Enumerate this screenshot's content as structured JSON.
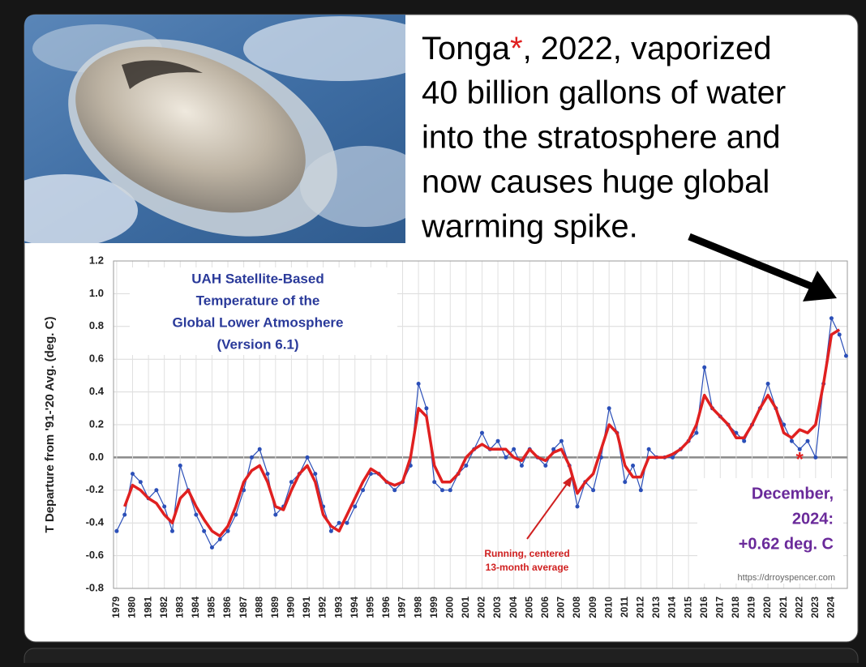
{
  "headline": [
    [
      "Tonga",
      "*",
      ", 2022, vaporized"
    ],
    [
      "40 billion gallons of water"
    ],
    [
      "into the stratosphere and"
    ],
    [
      "now causes huge global"
    ],
    [
      "warming spike."
    ]
  ],
  "chart_data": {
    "type": "line",
    "title": [
      "UAH Satellite-Based",
      "Temperature of the",
      "Global Lower Atmosphere",
      "(Version 6.1)"
    ],
    "ylabel": "T Departure from '91-'20 Avg. (deg. C)",
    "annotation": [
      "December,",
      "2024:",
      "+0.62 deg. C"
    ],
    "running_note": [
      "Running, centered",
      "13-month average"
    ],
    "source": "https://drroyspencer.com",
    "asterisk": "*",
    "grid": true,
    "xlim": [
      1978.8,
      2025
    ],
    "xticks": [
      1979,
      1980,
      1981,
      1982,
      1983,
      1984,
      1985,
      1986,
      1987,
      1988,
      1989,
      1990,
      1991,
      1992,
      1993,
      1994,
      1995,
      1996,
      1997,
      1998,
      1999,
      2000,
      2001,
      2002,
      2003,
      2004,
      2005,
      2006,
      2007,
      2008,
      2009,
      2010,
      2011,
      2012,
      2013,
      2014,
      2015,
      2016,
      2017,
      2018,
      2019,
      2020,
      2021,
      2022,
      2023,
      2024
    ],
    "ylim": [
      -0.8,
      1.2
    ],
    "yticks": [
      -0.8,
      -0.6,
      -0.4,
      -0.2,
      {
        "value": 0,
        "label": "0.0"
      },
      0.2,
      0.4,
      0.6,
      0.8,
      {
        "value": 1,
        "label": "1.0"
      },
      1.2
    ],
    "x": [
      1979,
      1979.5,
      1980,
      1980.5,
      1981,
      1981.5,
      1982,
      1982.5,
      1983,
      1983.5,
      1984,
      1984.5,
      1985,
      1985.5,
      1986,
      1986.5,
      1987,
      1987.5,
      1988,
      1988.5,
      1989,
      1989.5,
      1990,
      1990.5,
      1991,
      1991.5,
      1992,
      1992.5,
      1993,
      1993.5,
      1994,
      1994.5,
      1995,
      1995.5,
      1996,
      1996.5,
      1997,
      1997.5,
      1998,
      1998.5,
      1999,
      1999.5,
      2000,
      2000.5,
      2001,
      2001.5,
      2002,
      2002.5,
      2003,
      2003.5,
      2004,
      2004.5,
      2005,
      2005.5,
      2006,
      2006.5,
      2007,
      2007.5,
      2008,
      2008.5,
      2009,
      2009.5,
      2010,
      2010.5,
      2011,
      2011.5,
      2012,
      2012.5,
      2013,
      2013.5,
      2014,
      2014.5,
      2015,
      2015.5,
      2016,
      2016.5,
      2017,
      2017.5,
      2018,
      2018.5,
      2019,
      2019.5,
      2020,
      2020.5,
      2021,
      2021.5,
      2022,
      2022.5,
      2023,
      2023.5,
      2024,
      2024.5,
      2024.92
    ],
    "series": [
      {
        "color": "#2b4fb8",
        "markers": true,
        "values": [
          -0.45,
          -0.35,
          -0.1,
          -0.15,
          -0.25,
          -0.2,
          -0.3,
          -0.45,
          -0.05,
          -0.2,
          -0.35,
          -0.45,
          -0.55,
          -0.5,
          -0.45,
          -0.35,
          -0.2,
          0,
          0.05,
          -0.1,
          -0.35,
          -0.3,
          -0.15,
          -0.1,
          0,
          -0.1,
          -0.3,
          -0.45,
          -0.4,
          -0.4,
          -0.3,
          -0.2,
          -0.1,
          -0.1,
          -0.15,
          -0.2,
          -0.15,
          -0.05,
          0.45,
          0.3,
          -0.15,
          -0.2,
          -0.2,
          -0.1,
          -0.05,
          0.05,
          0.15,
          0.05,
          0.1,
          0,
          0.05,
          -0.05,
          0.05,
          0,
          -0.05,
          0.05,
          0.1,
          -0.05,
          -0.3,
          -0.15,
          -0.2,
          0,
          0.3,
          0.15,
          -0.15,
          -0.05,
          -0.2,
          0.05,
          0,
          0,
          0,
          0.05,
          0.1,
          0.15,
          0.55,
          0.3,
          0.25,
          0.2,
          0.15,
          0.1,
          0.2,
          0.3,
          0.45,
          0.3,
          0.2,
          0.1,
          0.05,
          0.1,
          0,
          0.45,
          0.85,
          0.75,
          0.62
        ]
      },
      {
        "color": "#e02020",
        "markers": false,
        "values": [
          null,
          -0.3,
          -0.17,
          -0.2,
          -0.25,
          -0.28,
          -0.35,
          -0.4,
          -0.25,
          -0.2,
          -0.3,
          -0.38,
          -0.45,
          -0.48,
          -0.42,
          -0.3,
          -0.15,
          -0.08,
          -0.05,
          -0.15,
          -0.3,
          -0.32,
          -0.2,
          -0.1,
          -0.05,
          -0.15,
          -0.35,
          -0.42,
          -0.45,
          -0.35,
          -0.25,
          -0.15,
          -0.07,
          -0.1,
          -0.15,
          -0.17,
          -0.15,
          0,
          0.3,
          0.25,
          -0.05,
          -0.15,
          -0.15,
          -0.1,
          0,
          0.05,
          0.08,
          0.05,
          0.05,
          0.05,
          0,
          -0.02,
          0.05,
          0,
          -0.02,
          0.03,
          0.05,
          -0.05,
          -0.22,
          -0.15,
          -0.1,
          0.05,
          0.2,
          0.15,
          -0.05,
          -0.12,
          -0.12,
          0,
          0,
          0,
          0.02,
          0.05,
          0.1,
          0.2,
          0.38,
          0.3,
          0.25,
          0.2,
          0.12,
          0.12,
          0.2,
          0.3,
          0.38,
          0.3,
          0.15,
          0.12,
          0.17,
          0.15,
          0.2,
          0.45,
          0.75,
          0.78,
          null
        ]
      }
    ]
  }
}
